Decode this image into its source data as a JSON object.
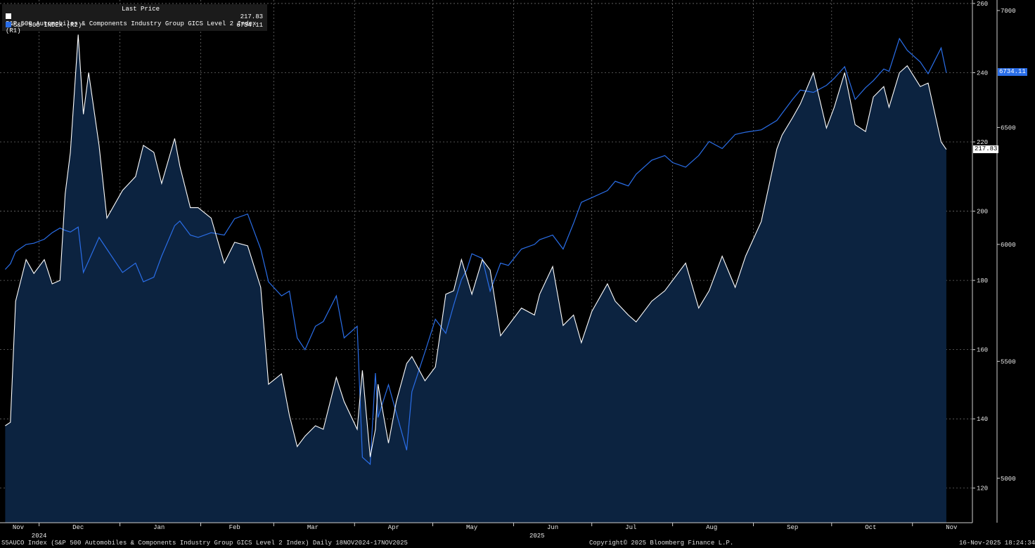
{
  "legend": {
    "header": "Last Price",
    "series": [
      {
        "label": "S&P 500 Automobiles & Components Industry Group GICS Level 2 Index  (R1)",
        "value": "217.83",
        "color": "#ffffff"
      },
      {
        "label": "S&P 500 INDEX  (R2)",
        "value": "6734.11",
        "color": "#2a6ee8"
      }
    ]
  },
  "footer": {
    "left": "S5AUCO Index (S&P 500 Automobiles & Components Industry Group GICS Level 2 Index) Daily 18NOV2024-17NOV2025",
    "center": "Copyright© 2025 Bloomberg Finance L.P.",
    "right": "16-Nov-2025 18:24:34"
  },
  "last_labels": {
    "r1": "217.83",
    "r2": "6734.11"
  },
  "colors": {
    "background": "#000000",
    "area_fill": "#0c2340",
    "r1_line": "#ffffff",
    "r2_line": "#2a6ee8",
    "grid": "#6a6a6a"
  },
  "chart_data": {
    "type": "line",
    "x_axis": {
      "ticks": [
        "Nov",
        "Dec",
        "Jan",
        "Feb",
        "Mar",
        "Apr",
        "May",
        "Jun",
        "Jul",
        "Aug",
        "Sep",
        "Oct",
        "Nov"
      ],
      "year_labels": [
        "2024",
        "2025"
      ]
    },
    "y_axis_r1": {
      "ticks": [
        120,
        140,
        160,
        180,
        200,
        220,
        240,
        260
      ],
      "range": [
        110,
        261
      ]
    },
    "y_axis_r2": {
      "ticks": [
        5000,
        5500,
        6000,
        6500,
        7000
      ],
      "range": [
        4810,
        7045
      ]
    },
    "series": [
      {
        "name": "S&P 500 Automobiles & Components Industry Group GICS Level 2 Index (R1)",
        "axis": "R1",
        "x": [
          "2024-11-18",
          "2024-11-20",
          "2024-11-22",
          "2024-11-26",
          "2024-11-29",
          "2024-12-03",
          "2024-12-06",
          "2024-12-09",
          "2024-12-11",
          "2024-12-13",
          "2024-12-16",
          "2024-12-18",
          "2024-12-20",
          "2024-12-24",
          "2024-12-27",
          "2025-01-02",
          "2025-01-07",
          "2025-01-10",
          "2025-01-14",
          "2025-01-17",
          "2025-01-22",
          "2025-01-24",
          "2025-01-28",
          "2025-01-31",
          "2025-02-05",
          "2025-02-10",
          "2025-02-14",
          "2025-02-19",
          "2025-02-24",
          "2025-02-27",
          "2025-03-04",
          "2025-03-07",
          "2025-03-10",
          "2025-03-13",
          "2025-03-17",
          "2025-03-20",
          "2025-03-25",
          "2025-03-28",
          "2025-04-02",
          "2025-04-04",
          "2025-04-07",
          "2025-04-09",
          "2025-04-10",
          "2025-04-14",
          "2025-04-17",
          "2025-04-21",
          "2025-04-23",
          "2025-04-28",
          "2025-05-02",
          "2025-05-06",
          "2025-05-09",
          "2025-05-12",
          "2025-05-14",
          "2025-05-16",
          "2025-05-20",
          "2025-05-23",
          "2025-05-27",
          "2025-05-30",
          "2025-06-04",
          "2025-06-09",
          "2025-06-11",
          "2025-06-16",
          "2025-06-20",
          "2025-06-24",
          "2025-06-27",
          "2025-07-01",
          "2025-07-07",
          "2025-07-10",
          "2025-07-15",
          "2025-07-18",
          "2025-07-24",
          "2025-07-29",
          "2025-08-01",
          "2025-08-06",
          "2025-08-11",
          "2025-08-15",
          "2025-08-20",
          "2025-08-25",
          "2025-08-29",
          "2025-09-04",
          "2025-09-10",
          "2025-09-12",
          "2025-09-16",
          "2025-09-19",
          "2025-09-24",
          "2025-09-29",
          "2025-10-02",
          "2025-10-06",
          "2025-10-10",
          "2025-10-14",
          "2025-10-17",
          "2025-10-21",
          "2025-10-23",
          "2025-10-27",
          "2025-10-30",
          "2025-11-04",
          "2025-11-07",
          "2025-11-12",
          "2025-11-14"
        ],
        "y": [
          138,
          139,
          174,
          186,
          182,
          186,
          179,
          180,
          205,
          217,
          251,
          228,
          240,
          219,
          198,
          206,
          210,
          219,
          217,
          208,
          221,
          213,
          201,
          201,
          198,
          185,
          191,
          190,
          178,
          150,
          153,
          141,
          132,
          135,
          138,
          137,
          152,
          145,
          137,
          154,
          129,
          137,
          150,
          133,
          145,
          156,
          158,
          151,
          155,
          176,
          177,
          186,
          181,
          176,
          186,
          183,
          164,
          167,
          172,
          170,
          176,
          184,
          167,
          170,
          162,
          171,
          179,
          174,
          170,
          168,
          174,
          177,
          180,
          185,
          172,
          177,
          187,
          178,
          187,
          197,
          218,
          222,
          227,
          231,
          240,
          224,
          230,
          240,
          225,
          223,
          233,
          236,
          230,
          240,
          242,
          236,
          237,
          220,
          217.83
        ]
      },
      {
        "name": "S&P 500 INDEX (R2)",
        "axis": "R2",
        "x": [
          "2024-11-18",
          "2024-11-20",
          "2024-11-22",
          "2024-11-26",
          "2024-11-29",
          "2024-12-03",
          "2024-12-06",
          "2024-12-09",
          "2024-12-11",
          "2024-12-13",
          "2024-12-16",
          "2024-12-18",
          "2024-12-20",
          "2024-12-24",
          "2024-12-27",
          "2025-01-02",
          "2025-01-07",
          "2025-01-10",
          "2025-01-14",
          "2025-01-17",
          "2025-01-22",
          "2025-01-24",
          "2025-01-28",
          "2025-01-31",
          "2025-02-05",
          "2025-02-10",
          "2025-02-14",
          "2025-02-19",
          "2025-02-24",
          "2025-02-27",
          "2025-03-04",
          "2025-03-07",
          "2025-03-10",
          "2025-03-13",
          "2025-03-17",
          "2025-03-20",
          "2025-03-25",
          "2025-03-28",
          "2025-04-02",
          "2025-04-04",
          "2025-04-07",
          "2025-04-09",
          "2025-04-10",
          "2025-04-14",
          "2025-04-17",
          "2025-04-21",
          "2025-04-23",
          "2025-04-28",
          "2025-05-02",
          "2025-05-06",
          "2025-05-09",
          "2025-05-12",
          "2025-05-14",
          "2025-05-16",
          "2025-05-20",
          "2025-05-23",
          "2025-05-27",
          "2025-05-30",
          "2025-06-04",
          "2025-06-09",
          "2025-06-11",
          "2025-06-16",
          "2025-06-20",
          "2025-06-24",
          "2025-06-27",
          "2025-07-01",
          "2025-07-07",
          "2025-07-10",
          "2025-07-15",
          "2025-07-18",
          "2025-07-24",
          "2025-07-29",
          "2025-08-01",
          "2025-08-06",
          "2025-08-11",
          "2025-08-15",
          "2025-08-20",
          "2025-08-25",
          "2025-08-29",
          "2025-09-04",
          "2025-09-10",
          "2025-09-12",
          "2025-09-16",
          "2025-09-19",
          "2025-09-24",
          "2025-09-29",
          "2025-10-02",
          "2025-10-06",
          "2025-10-10",
          "2025-10-14",
          "2025-10-17",
          "2025-10-21",
          "2025-10-23",
          "2025-10-27",
          "2025-10-30",
          "2025-11-04",
          "2025-11-07",
          "2025-11-12",
          "2025-11-14"
        ],
        "y": [
          5893,
          5917,
          5969,
          6000,
          6005,
          6022,
          6050,
          6070,
          6060,
          6053,
          6074,
          5880,
          5930,
          6030,
          5980,
          5880,
          5920,
          5840,
          5860,
          5950,
          6080,
          6100,
          6040,
          6030,
          6050,
          6040,
          6110,
          6130,
          5980,
          5840,
          5780,
          5800,
          5600,
          5550,
          5650,
          5670,
          5780,
          5600,
          5650,
          5090,
          5060,
          5450,
          5260,
          5400,
          5280,
          5120,
          5370,
          5540,
          5680,
          5620,
          5740,
          5850,
          5890,
          5960,
          5940,
          5800,
          5920,
          5910,
          5980,
          6000,
          6020,
          6040,
          5980,
          6090,
          6180,
          6200,
          6230,
          6270,
          6250,
          6300,
          6360,
          6380,
          6350,
          6330,
          6380,
          6440,
          6410,
          6470,
          6480,
          6490,
          6530,
          6560,
          6620,
          6660,
          6650,
          6680,
          6710,
          6760,
          6620,
          6670,
          6700,
          6750,
          6740,
          6880,
          6830,
          6780,
          6730,
          6840,
          6734.11
        ]
      }
    ]
  }
}
